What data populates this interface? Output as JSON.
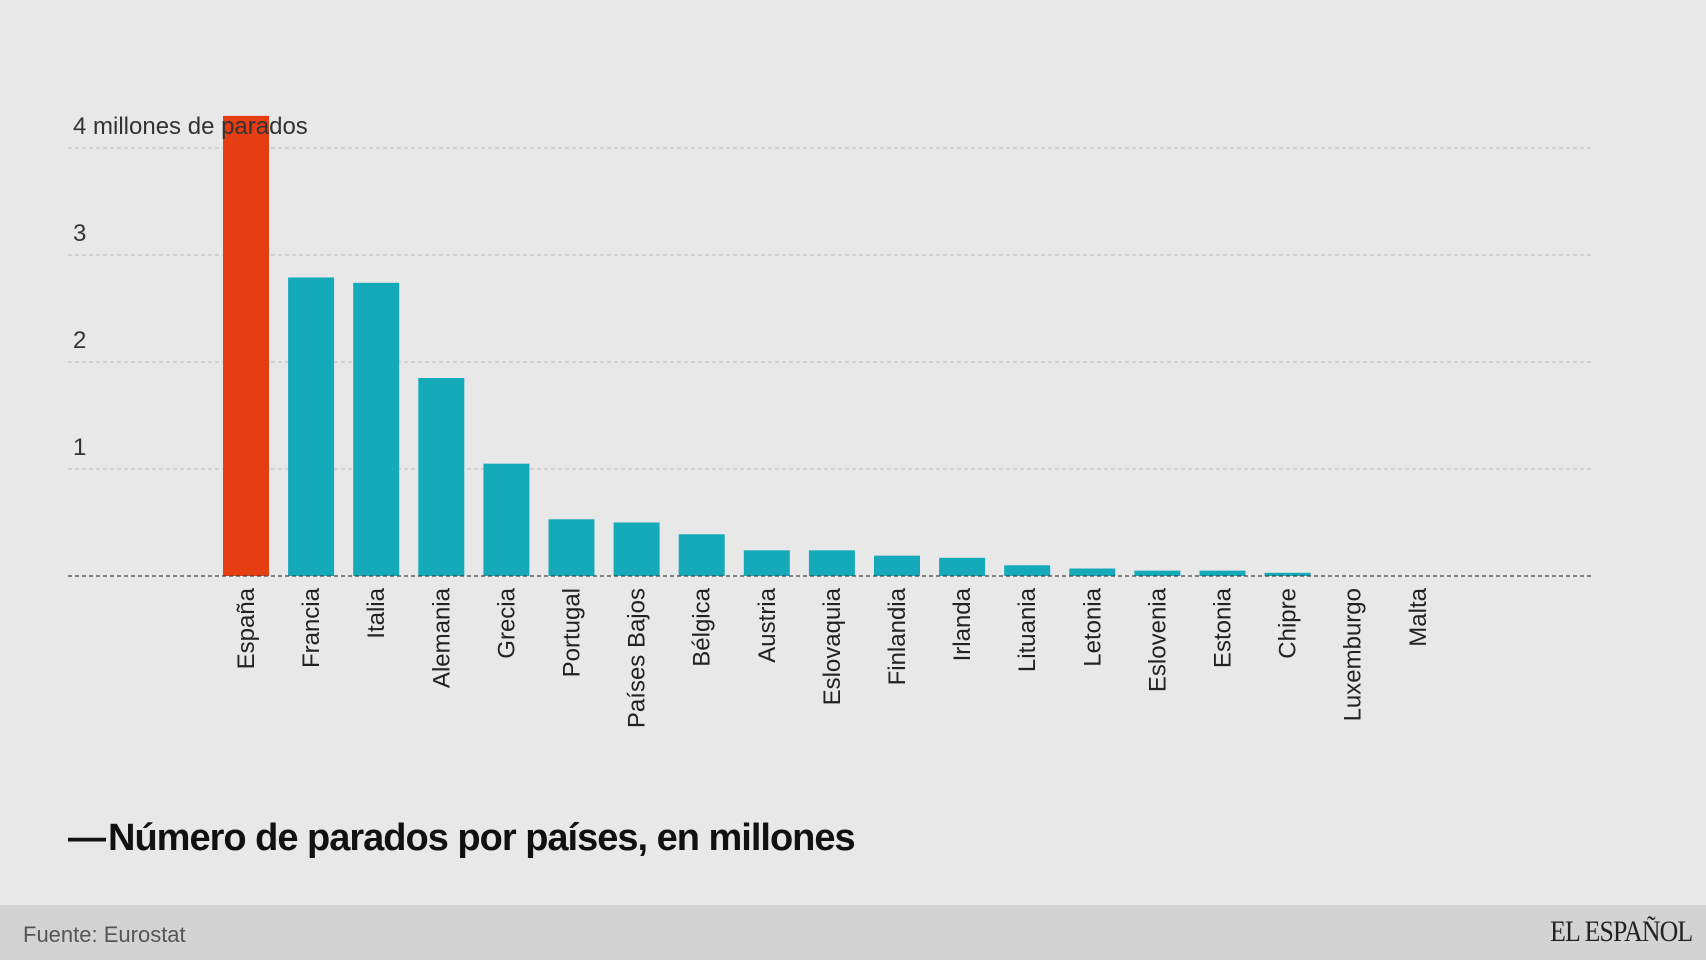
{
  "chart_data": {
    "type": "bar",
    "title": "Número de parados por países, en millones",
    "title_marker": "—",
    "xlabel": "",
    "ylabel": "",
    "ylim": [
      0,
      4.3
    ],
    "yticks": [
      {
        "value": 1,
        "label": "1"
      },
      {
        "value": 2,
        "label": "2"
      },
      {
        "value": 3,
        "label": "3"
      },
      {
        "value": 4,
        "label": "4 millones de parados"
      }
    ],
    "grid": true,
    "categories": [
      "España",
      "Francia",
      "Italia",
      "Alemania",
      "Grecia",
      "Portugal",
      "Países Bajos",
      "Bélgica",
      "Austria",
      "Eslovaquia",
      "Finlandia",
      "Irlanda",
      "Lituania",
      "Letonia",
      "Eslovenia",
      "Estonia",
      "Chipre",
      "Luxemburgo",
      "Malta"
    ],
    "values": [
      4.3,
      2.79,
      2.74,
      1.85,
      1.05,
      0.53,
      0.5,
      0.39,
      0.24,
      0.24,
      0.19,
      0.17,
      0.1,
      0.07,
      0.05,
      0.05,
      0.03,
      0.0,
      0.0
    ],
    "highlight": "España",
    "colors": {
      "highlight": "#e63e12",
      "default": "#14aab9"
    }
  },
  "footer": {
    "source": "Fuente: Eurostat",
    "brand": "EL ESPAÑOL"
  }
}
